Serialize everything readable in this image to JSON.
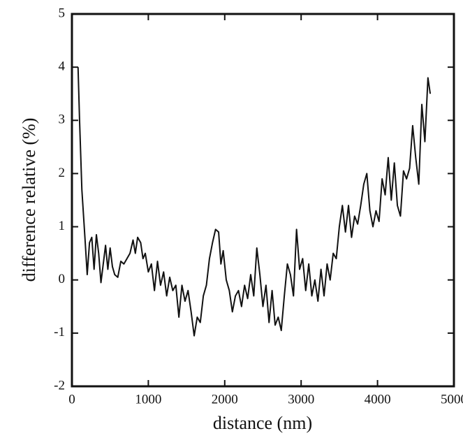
{
  "chart_data": {
    "type": "line",
    "xlabel": "distance (nm)",
    "ylabel": "difference relative (%)",
    "xlim": [
      0,
      5000
    ],
    "xticks": [
      0,
      1000,
      2000,
      3000,
      4000,
      5000
    ],
    "ylim": [
      -2,
      5
    ],
    "yticks": [
      -2,
      -1,
      0,
      1,
      2,
      3,
      4,
      5
    ],
    "series": [
      {
        "color": "#111111",
        "x": [
          80,
          100,
          130,
          170,
          200,
          230,
          260,
          290,
          320,
          350,
          380,
          410,
          440,
          470,
          500,
          530,
          560,
          600,
          640,
          680,
          720,
          760,
          800,
          830,
          860,
          900,
          930,
          960,
          1000,
          1040,
          1080,
          1120,
          1160,
          1200,
          1240,
          1280,
          1320,
          1360,
          1400,
          1440,
          1480,
          1520,
          1560,
          1600,
          1640,
          1680,
          1720,
          1760,
          1800,
          1840,
          1880,
          1920,
          1950,
          1980,
          2020,
          2060,
          2100,
          2140,
          2180,
          2220,
          2260,
          2300,
          2340,
          2380,
          2420,
          2460,
          2500,
          2540,
          2580,
          2620,
          2660,
          2700,
          2740,
          2780,
          2820,
          2860,
          2900,
          2940,
          2980,
          3020,
          3060,
          3100,
          3140,
          3180,
          3220,
          3260,
          3300,
          3340,
          3380,
          3420,
          3460,
          3500,
          3540,
          3580,
          3620,
          3660,
          3700,
          3740,
          3780,
          3820,
          3860,
          3900,
          3940,
          3980,
          4020,
          4060,
          4100,
          4140,
          4180,
          4220,
          4260,
          4300,
          4340,
          4380,
          4420,
          4460,
          4500,
          4540,
          4580,
          4620,
          4660,
          4690
        ],
        "values": [
          4.0,
          3.0,
          1.7,
          0.8,
          0.1,
          0.7,
          0.8,
          0.2,
          0.85,
          0.5,
          -0.05,
          0.3,
          0.65,
          0.2,
          0.6,
          0.25,
          0.1,
          0.05,
          0.35,
          0.3,
          0.4,
          0.5,
          0.75,
          0.5,
          0.8,
          0.7,
          0.4,
          0.5,
          0.15,
          0.3,
          -0.2,
          0.35,
          -0.1,
          0.15,
          -0.3,
          0.05,
          -0.2,
          -0.1,
          -0.7,
          -0.1,
          -0.4,
          -0.2,
          -0.6,
          -1.05,
          -0.7,
          -0.8,
          -0.3,
          -0.1,
          0.4,
          0.7,
          0.95,
          0.9,
          0.3,
          0.55,
          0.0,
          -0.2,
          -0.6,
          -0.3,
          -0.2,
          -0.5,
          -0.1,
          -0.35,
          0.1,
          -0.3,
          0.6,
          0.1,
          -0.5,
          -0.1,
          -0.8,
          -0.2,
          -0.85,
          -0.7,
          -0.95,
          -0.3,
          0.3,
          0.1,
          -0.3,
          0.95,
          0.2,
          0.4,
          -0.2,
          0.3,
          -0.3,
          0.0,
          -0.4,
          0.2,
          -0.3,
          0.3,
          0.0,
          0.5,
          0.4,
          1.0,
          1.4,
          0.9,
          1.4,
          0.8,
          1.2,
          1.05,
          1.4,
          1.8,
          2.0,
          1.3,
          1.0,
          1.3,
          1.1,
          1.9,
          1.6,
          2.3,
          1.5,
          2.2,
          1.4,
          1.2,
          2.05,
          1.9,
          2.1,
          2.9,
          2.3,
          1.8,
          3.3,
          2.6,
          3.8,
          3.5
        ]
      }
    ]
  }
}
